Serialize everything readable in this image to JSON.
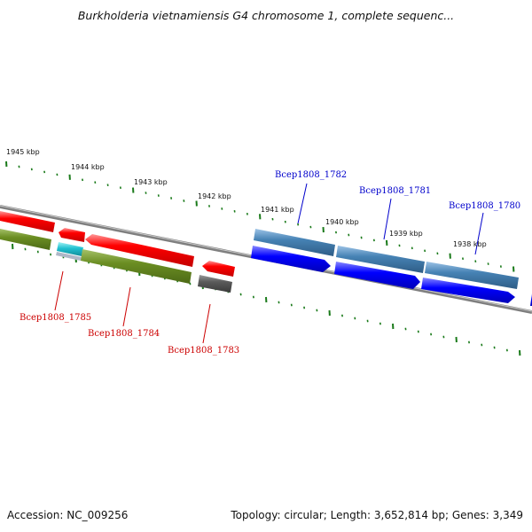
{
  "title": "Burkholderia vietnamiensis G4 chromosome 1, complete sequenc...",
  "footer": {
    "accession": "Accession: NC_009256",
    "summary": "Topology: circular; Length: 3,652,814 bp; Genes: 3,349"
  },
  "colors": {
    "tick": "#1a7a1a",
    "backbone": "#7f7f7f",
    "forward_label": "#0000cc",
    "reverse_label": "#cc0000"
  },
  "kbp_labels": [
    "1945 kbp",
    "1944 kbp",
    "1943 kbp",
    "1942 kbp",
    "1941 kbp",
    "1940 kbp",
    "1939 kbp",
    "1938 kbp"
  ],
  "gene_labels": [
    "Bcep1808_1782",
    "Bcep1808_1781",
    "Bcep1808_1780",
    "Bcep1808_1785",
    "Bcep1808_1784",
    "Bcep1808_1783"
  ]
}
